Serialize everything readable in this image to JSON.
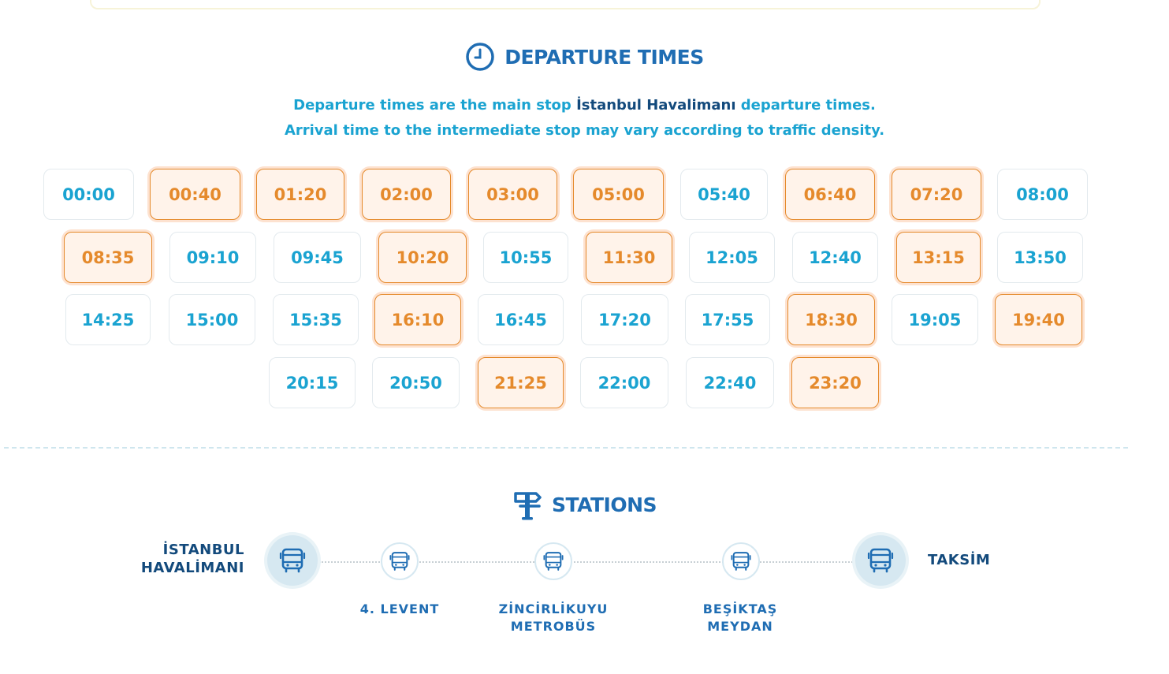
{
  "departures": {
    "title": "DEPARTURE TIMES",
    "info_line1_pre": "Departure times are the main stop ",
    "info_line1_bold": "İstanbul Havalimanı",
    "info_line1_post": " departure times.",
    "info_line2": "Arrival time to the intermediate stop may vary according to traffic density.",
    "times": [
      "00:00",
      "00:40",
      "01:20",
      "02:00",
      "03:00",
      "05:00",
      "05:40",
      "06:40",
      "07:20",
      "08:00",
      "08:35",
      "09:10",
      "09:45",
      "10:20",
      "10:55",
      "11:30",
      "12:05",
      "12:40",
      "13:15",
      "13:50",
      "14:25",
      "15:00",
      "15:35",
      "16:10",
      "16:45",
      "17:20",
      "17:55",
      "18:30",
      "19:05",
      "19:40",
      "20:15",
      "20:50",
      "21:25",
      "22:00",
      "22:40",
      "23:20"
    ],
    "highlight_color": "#e58a2c",
    "normal_color": "#1aa3d1"
  },
  "stations": {
    "title": "STATIONS",
    "start": "İSTANBUL HAVALİMANI",
    "start_line1": "İSTANBUL",
    "start_line2": "HAVALİMANI",
    "end": "TAKSİM",
    "stop1": "4. LEVENT",
    "stop2_line1": "ZİNCİRLİKUYU",
    "stop2_line2": "METROBÜS",
    "stop3_line1": "BEŞİKTAŞ",
    "stop3_line2": "MEYDAN"
  }
}
